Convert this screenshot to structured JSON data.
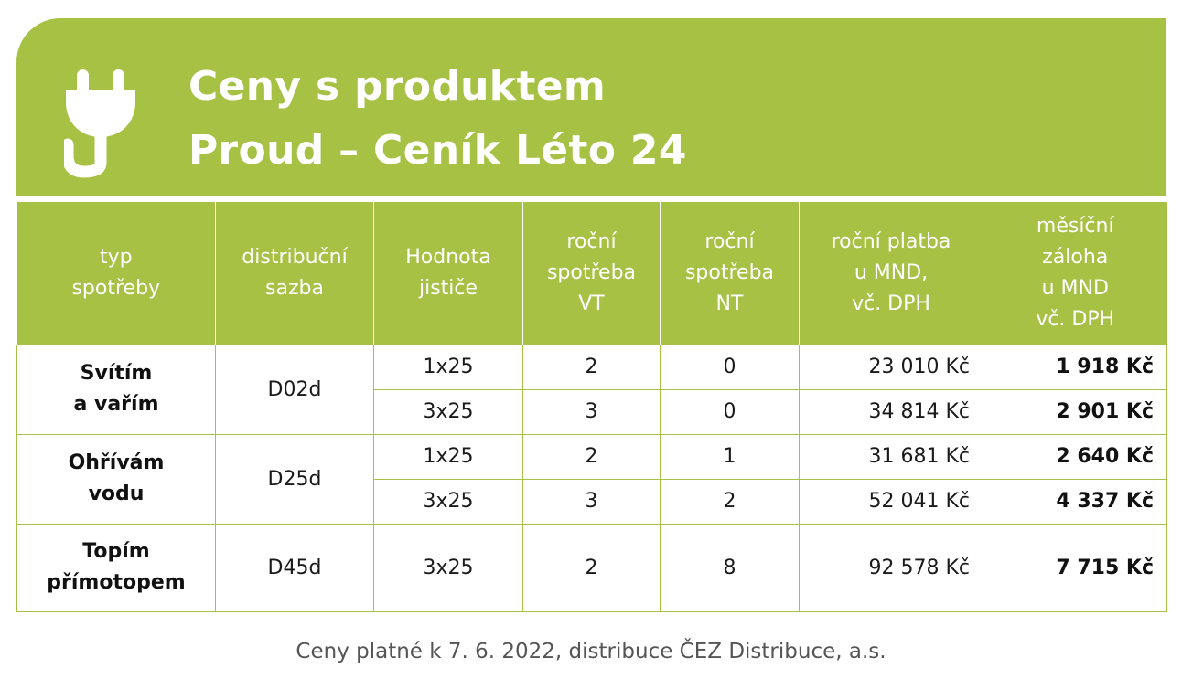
{
  "title": {
    "line1": "Ceny s produktem",
    "line2": "Proud – Ceník Léto 24"
  },
  "icon": "plug-icon",
  "colors": {
    "accent": "#a6c144",
    "text": "#1a1a1a",
    "footnote": "#555555"
  },
  "headers": {
    "type": [
      "typ",
      "spotřeby"
    ],
    "rate": [
      "distribuční",
      "sazba"
    ],
    "breaker": [
      "Hodnota",
      "jističe"
    ],
    "vt": [
      "roční",
      "spotřeba",
      "VT"
    ],
    "nt": [
      "roční",
      "spotřeba",
      "NT"
    ],
    "annual": [
      "roční platba",
      "u MND,",
      "vč. DPH"
    ],
    "monthly": [
      "měsíční",
      "záloha",
      "u MND",
      "vč. DPH"
    ]
  },
  "groups": [
    {
      "type": [
        "Svítím",
        "a vařím"
      ],
      "rate": "D02d",
      "rows": [
        {
          "breaker": "1x25",
          "vt": "2",
          "nt": "0",
          "annual": "23 010 Kč",
          "monthly": "1 918 Kč"
        },
        {
          "breaker": "3x25",
          "vt": "3",
          "nt": "0",
          "annual": "34 814 Kč",
          "monthly": "2 901 Kč"
        }
      ]
    },
    {
      "type": [
        "Ohřívám",
        "vodu"
      ],
      "rate": "D25d",
      "rows": [
        {
          "breaker": "1x25",
          "vt": "2",
          "nt": "1",
          "annual": "31 681 Kč",
          "monthly": "2 640 Kč"
        },
        {
          "breaker": "3x25",
          "vt": "3",
          "nt": "2",
          "annual": "52 041 Kč",
          "monthly": "4 337 Kč"
        }
      ]
    },
    {
      "type": [
        "Topím",
        "přímotopem"
      ],
      "rate": "D45d",
      "rows": [
        {
          "breaker": "3x25",
          "vt": "2",
          "nt": "8",
          "annual": "92 578 Kč",
          "monthly": "7 715 Kč"
        }
      ]
    }
  ],
  "footnote": "Ceny platné k 7. 6. 2022, distribuce ČEZ Distribuce, a.s."
}
